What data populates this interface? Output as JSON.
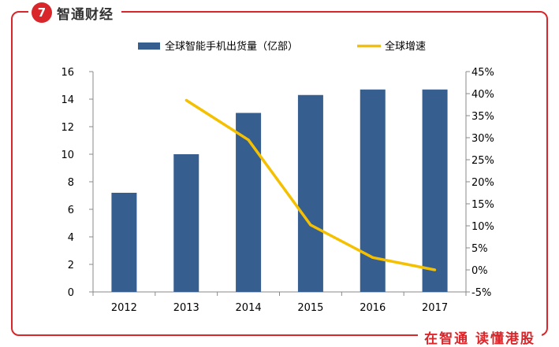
{
  "brand": {
    "logo_glyph": "7",
    "name": "智通财经",
    "slogan": "在智通 读懂港股",
    "accent": "#d9262a"
  },
  "chart_data": {
    "type": "bar",
    "categories": [
      "2012",
      "2013",
      "2014",
      "2015",
      "2016",
      "2017"
    ],
    "series": [
      {
        "name": "全球智能手机出货量（亿部）",
        "type": "bar",
        "axis": "left",
        "color": "#365e8f",
        "values": [
          7.2,
          10.0,
          13.0,
          14.3,
          14.7,
          14.7
        ]
      },
      {
        "name": "全球增速",
        "type": "line",
        "axis": "right",
        "color": "#f5c000",
        "values": [
          null,
          38.5,
          29.5,
          10.2,
          2.8,
          0.0
        ]
      }
    ],
    "y_left": {
      "range": [
        0,
        16
      ],
      "ticks": [
        "0",
        "2",
        "4",
        "6",
        "8",
        "10",
        "12",
        "14",
        "16"
      ]
    },
    "y_right": {
      "range": [
        -5,
        45
      ],
      "ticks": [
        "-5%",
        "0%",
        "5%",
        "10%",
        "15%",
        "20%",
        "25%",
        "30%",
        "35%",
        "40%",
        "45%"
      ]
    },
    "grid": false,
    "legend": "top"
  }
}
